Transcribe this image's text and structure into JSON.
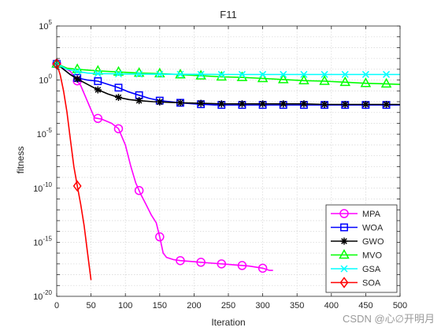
{
  "chart_data": {
    "type": "line",
    "title": "F11",
    "xlabel": "Iteration",
    "ylabel": "fitness",
    "xlim": [
      0,
      500
    ],
    "ylim_log10": [
      -20,
      5
    ],
    "yscale": "log",
    "grid": true,
    "legend_position": "bottom-right",
    "x_ticks": [
      "0",
      "50",
      "100",
      "150",
      "200",
      "250",
      "300",
      "350",
      "400",
      "450",
      "500"
    ],
    "y_ticks": [
      {
        "base": "10",
        "exp": "-20"
      },
      {
        "base": "10",
        "exp": "-15"
      },
      {
        "base": "10",
        "exp": "-10"
      },
      {
        "base": "10",
        "exp": "-5"
      },
      {
        "base": "10",
        "exp": "0"
      },
      {
        "base": "10",
        "exp": "5"
      }
    ],
    "series": [
      {
        "name": "MPA",
        "color": "#ff00ff",
        "marker": "circle",
        "x": [
          0,
          5,
          12,
          20,
          28,
          35,
          45,
          55,
          65,
          80,
          90,
          100,
          108,
          115,
          122,
          130,
          138,
          145,
          150,
          155,
          160,
          170,
          180,
          200,
          220,
          240,
          260,
          280,
          300,
          310,
          315
        ],
        "y_log10": [
          1.5,
          1.3,
          1.1,
          0.8,
          0.1,
          -0.5,
          -2.0,
          -3.5,
          -3.6,
          -4.0,
          -4.5,
          -6.0,
          -8.0,
          -9.5,
          -10.5,
          -11.5,
          -12.5,
          -13.2,
          -14.5,
          -16.0,
          -16.4,
          -16.6,
          -16.7,
          -16.8,
          -16.9,
          -17.0,
          -17.1,
          -17.2,
          -17.4,
          -17.6,
          -17.6
        ]
      },
      {
        "name": "WOA",
        "color": "#0000ff",
        "marker": "square",
        "x": [
          0,
          10,
          20,
          30,
          45,
          60,
          75,
          90,
          105,
          120,
          135,
          150,
          165,
          180,
          200,
          230,
          260,
          300,
          350,
          400,
          450,
          500
        ],
        "y_log10": [
          1.5,
          1.0,
          0.5,
          0.2,
          0.0,
          -0.1,
          -0.4,
          -0.7,
          -1.1,
          -1.4,
          -1.7,
          -1.9,
          -2.0,
          -2.1,
          -2.2,
          -2.3,
          -2.3,
          -2.3,
          -2.3,
          -2.3,
          -2.3,
          -2.3
        ]
      },
      {
        "name": "GWO",
        "color": "#000000",
        "marker": "asterisk",
        "x": [
          0,
          10,
          20,
          30,
          45,
          60,
          75,
          90,
          105,
          120,
          140,
          160,
          180,
          210,
          240,
          270,
          300,
          330,
          360,
          390,
          420,
          450,
          480,
          500
        ],
        "y_log10": [
          1.5,
          1.0,
          0.5,
          0.1,
          -0.4,
          -0.9,
          -1.3,
          -1.6,
          -1.8,
          -1.9,
          -2.0,
          -2.05,
          -2.1,
          -2.15,
          -2.2,
          -2.2,
          -2.2,
          -2.2,
          -2.2,
          -2.25,
          -2.25,
          -2.25,
          -2.25,
          -2.25
        ]
      },
      {
        "name": "MVO",
        "color": "#00ff00",
        "marker": "triangle",
        "x": [
          0,
          15,
          30,
          60,
          90,
          120,
          150,
          180,
          210,
          240,
          270,
          300,
          330,
          360,
          390,
          420,
          450,
          480,
          500
        ],
        "y_log10": [
          1.5,
          1.1,
          1.0,
          0.85,
          0.75,
          0.65,
          0.6,
          0.5,
          0.4,
          0.3,
          0.25,
          0.15,
          0.05,
          -0.05,
          -0.1,
          -0.2,
          -0.3,
          -0.35,
          -0.4
        ]
      },
      {
        "name": "GSA",
        "color": "#00ffff",
        "marker": "x",
        "x": [
          0,
          15,
          30,
          45,
          60,
          80,
          100,
          130,
          160,
          200,
          250,
          300,
          350,
          400,
          450,
          500
        ],
        "y_log10": [
          1.5,
          1.0,
          0.8,
          0.65,
          0.6,
          0.58,
          0.56,
          0.55,
          0.54,
          0.53,
          0.52,
          0.52,
          0.52,
          0.52,
          0.52,
          0.52
        ]
      },
      {
        "name": "SOA",
        "color": "#ff0000",
        "marker": "diamond",
        "x": [
          0,
          5,
          10,
          15,
          20,
          25,
          30,
          35,
          40,
          45,
          50
        ],
        "y_log10": [
          1.5,
          0.5,
          -1.0,
          -3.0,
          -5.5,
          -8.0,
          -9.8,
          -11.5,
          -13.5,
          -16.0,
          -18.5
        ],
        "marker_x": [
          0,
          30
        ]
      }
    ]
  },
  "watermark": "CSDN @心∅开明月"
}
